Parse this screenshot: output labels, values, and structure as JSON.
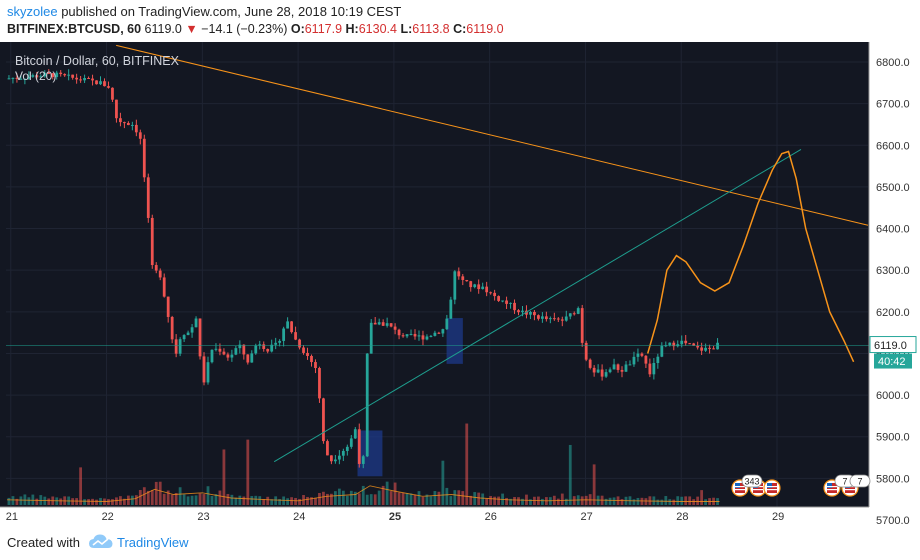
{
  "header": {
    "user": "skyzolee",
    "published": "published on TradingView.com, June 28, 2018 10:19 CEST",
    "symbol": "BITFINEX:BTCUSD, 60",
    "last": "6119.0",
    "change": "−14.1 (−0.23%)",
    "o_label": "O:",
    "o_val": "6117.9",
    "h_label": "H:",
    "h_val": "6130.4",
    "l_label": "L:",
    "l_val": "6113.8",
    "c_label": "C:",
    "c_val": "6119.0"
  },
  "footer": {
    "created": "Created with",
    "brand": "TradingView"
  },
  "colors": {
    "bg": "#131722",
    "up": "#26a69a",
    "down": "#ef5350",
    "orange": "#f7931a",
    "teal": "#1e9e8e"
  },
  "chart_data": {
    "type": "candlestick",
    "title": "Bitcoin / Dollar, 60, BITFINEX",
    "volume_label": "Vol (20)",
    "x_ticks": [
      "21",
      "22",
      "23",
      "24",
      "25",
      "26",
      "27",
      "28",
      "29"
    ],
    "y_ticks": [
      "6800.0",
      "6700.0",
      "6600.0",
      "6500.0",
      "6400.0",
      "6300.0",
      "6200.0",
      "6100.0",
      "6000.0",
      "5900.0",
      "5800.0",
      "5700.0"
    ],
    "ylim": [
      5700,
      6800
    ],
    "xlim": [
      20.95,
      29.95
    ],
    "last_price": "6119.0",
    "countdown": "40:42",
    "event_badges": [
      "343",
      "7",
      "7"
    ],
    "price_path": [
      [
        20.96,
        6760
      ],
      [
        21.2,
        6765
      ],
      [
        21.45,
        6770
      ],
      [
        21.7,
        6760
      ],
      [
        21.95,
        6750
      ],
      [
        22.05,
        6740
      ],
      [
        22.13,
        6660
      ],
      [
        22.3,
        6650
      ],
      [
        22.37,
        6620
      ],
      [
        22.43,
        6490
      ],
      [
        22.5,
        6300
      ],
      [
        22.58,
        6290
      ],
      [
        22.65,
        6210
      ],
      [
        22.7,
        6140
      ],
      [
        22.75,
        6100
      ],
      [
        22.8,
        6150
      ],
      [
        22.9,
        6150
      ],
      [
        22.95,
        6200
      ],
      [
        23.0,
        6080
      ],
      [
        23.05,
        6020
      ],
      [
        23.1,
        6110
      ],
      [
        23.2,
        6110
      ],
      [
        23.3,
        6090
      ],
      [
        23.4,
        6120
      ],
      [
        23.5,
        6080
      ],
      [
        23.6,
        6130
      ],
      [
        23.7,
        6110
      ],
      [
        23.8,
        6120
      ],
      [
        23.9,
        6180
      ],
      [
        24.0,
        6130
      ],
      [
        24.1,
        6100
      ],
      [
        24.22,
        6060
      ],
      [
        24.28,
        5890
      ],
      [
        24.35,
        5840
      ],
      [
        24.45,
        5860
      ],
      [
        24.55,
        5880
      ],
      [
        24.62,
        5920
      ],
      [
        24.68,
        5800
      ],
      [
        24.72,
        5890
      ],
      [
        24.75,
        6165
      ],
      [
        24.85,
        6175
      ],
      [
        24.95,
        6170
      ],
      [
        25.05,
        6150
      ],
      [
        25.15,
        6140
      ],
      [
        25.25,
        6140
      ],
      [
        25.35,
        6140
      ],
      [
        25.45,
        6150
      ],
      [
        25.55,
        6160
      ],
      [
        25.6,
        6210
      ],
      [
        25.66,
        6300
      ],
      [
        25.75,
        6270
      ],
      [
        25.85,
        6260
      ],
      [
        25.95,
        6260
      ],
      [
        26.05,
        6240
      ],
      [
        26.2,
        6220
      ],
      [
        26.35,
        6200
      ],
      [
        26.5,
        6190
      ],
      [
        26.65,
        6180
      ],
      [
        26.8,
        6180
      ],
      [
        26.95,
        6210
      ],
      [
        27.0,
        6100
      ],
      [
        27.1,
        6060
      ],
      [
        27.2,
        6050
      ],
      [
        27.3,
        6070
      ],
      [
        27.4,
        6060
      ],
      [
        27.5,
        6080
      ],
      [
        27.6,
        6100
      ],
      [
        27.7,
        6050
      ],
      [
        27.8,
        6110
      ],
      [
        27.9,
        6120
      ],
      [
        28.0,
        6130
      ],
      [
        28.1,
        6120
      ],
      [
        28.2,
        6110
      ],
      [
        28.3,
        6110
      ],
      [
        28.4,
        6120
      ]
    ],
    "volume_path": [
      [
        20.96,
        0.15
      ],
      [
        21.5,
        0.12
      ],
      [
        22.0,
        0.1
      ],
      [
        22.3,
        0.18
      ],
      [
        22.5,
        0.45
      ],
      [
        22.7,
        0.3
      ],
      [
        23.0,
        0.35
      ],
      [
        23.3,
        0.2
      ],
      [
        23.7,
        0.15
      ],
      [
        24.0,
        0.12
      ],
      [
        24.3,
        0.25
      ],
      [
        24.6,
        0.3
      ],
      [
        24.75,
        0.55
      ],
      [
        25.0,
        0.4
      ],
      [
        25.3,
        0.25
      ],
      [
        25.6,
        0.3
      ],
      [
        25.9,
        0.2
      ],
      [
        26.2,
        0.15
      ],
      [
        26.6,
        0.12
      ],
      [
        27.0,
        0.15
      ],
      [
        27.5,
        0.12
      ],
      [
        28.0,
        0.1
      ],
      [
        28.4,
        0.1
      ]
    ],
    "resistance_line": [
      [
        22.1,
        6840
      ],
      [
        29.95,
        6408
      ]
    ],
    "support_line": [
      [
        23.75,
        5840
      ],
      [
        29.25,
        6590
      ]
    ],
    "projection_path": [
      [
        27.65,
        6100
      ],
      [
        27.75,
        6180
      ],
      [
        27.85,
        6300
      ],
      [
        27.95,
        6335
      ],
      [
        28.05,
        6320
      ],
      [
        28.2,
        6270
      ],
      [
        28.35,
        6250
      ],
      [
        28.5,
        6270
      ],
      [
        28.65,
        6360
      ],
      [
        28.8,
        6460
      ],
      [
        28.95,
        6540
      ],
      [
        29.05,
        6580
      ],
      [
        29.12,
        6585
      ],
      [
        29.2,
        6520
      ],
      [
        29.3,
        6400
      ],
      [
        29.4,
        6320
      ],
      [
        29.55,
        6200
      ],
      [
        29.7,
        6130
      ],
      [
        29.8,
        6080
      ]
    ],
    "highlight_boxes": [
      {
        "x0": 24.62,
        "x1": 24.88,
        "y0": 5805,
        "y1": 5915
      },
      {
        "x0": 25.55,
        "x1": 25.72,
        "y0": 6075,
        "y1": 6185
      }
    ]
  }
}
